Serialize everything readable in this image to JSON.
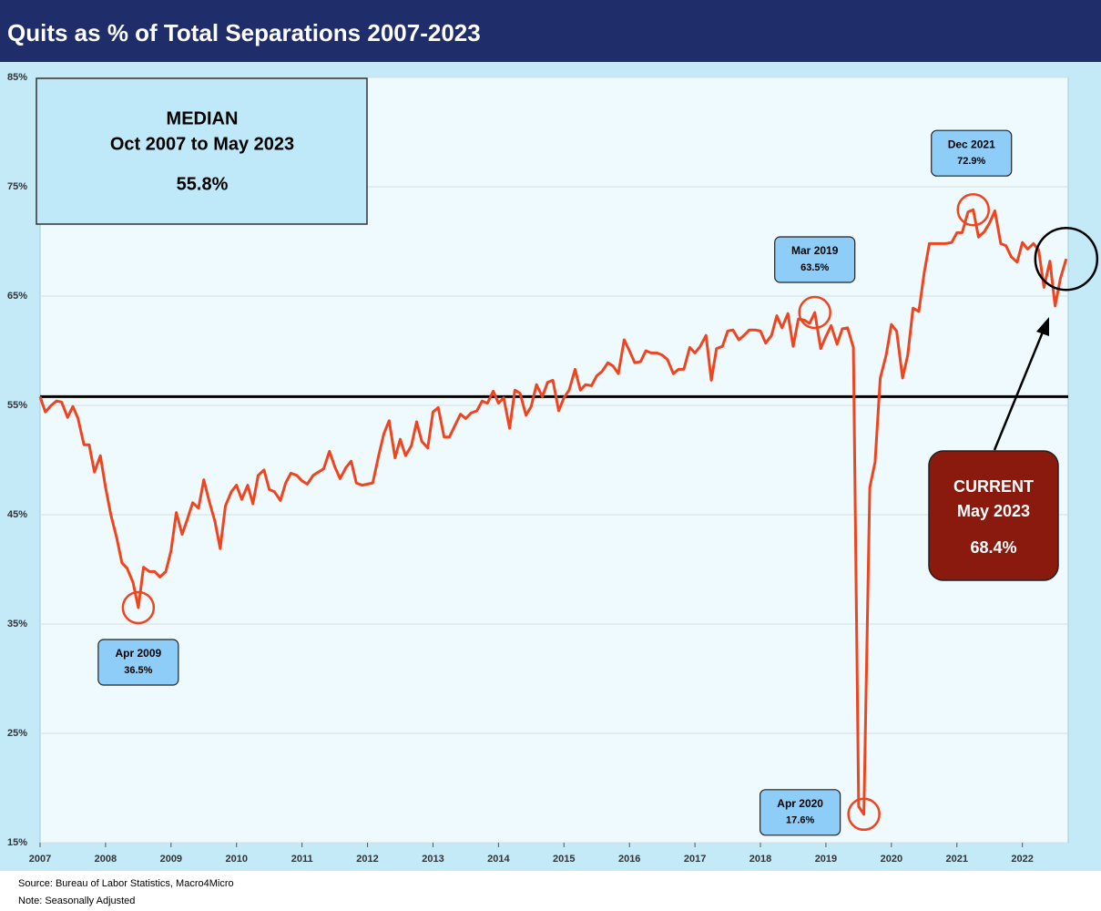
{
  "chart_data": {
    "type": "line",
    "title": "Quits as % of Total Separations 2007-2023",
    "source": "Source: Bureau of Labor Statistics, Macro4Micro",
    "note": "Note: Seasonally Adjusted",
    "color": "#f0441f",
    "grid": true,
    "xlim": [
      2007,
      2022.7
    ],
    "xticks": [
      2007,
      2008,
      2009,
      2010,
      2011,
      2012,
      2013,
      2014,
      2015,
      2016,
      2017,
      2018,
      2019,
      2020,
      2021,
      2022
    ],
    "ylim": [
      15,
      85
    ],
    "yticks": [
      {
        "value": 15,
        "label": "15%"
      },
      {
        "value": 25,
        "label": "25%"
      },
      {
        "value": 35,
        "label": "35%"
      },
      {
        "value": 45,
        "label": "45%"
      },
      {
        "value": 55,
        "label": "55%"
      },
      {
        "value": 65,
        "label": "65%"
      },
      {
        "value": 75,
        "label": "75%"
      },
      {
        "value": 85,
        "label": "85%"
      }
    ],
    "x": [
      2007,
      2007.08,
      2007.17,
      2007.25,
      2007.33,
      2007.42,
      2007.5,
      2007.58,
      2007.67,
      2007.75,
      2007.83,
      2007.92,
      2008,
      2008.08,
      2008.17,
      2008.25,
      2008.33,
      2008.42,
      2008.5,
      2008.58,
      2008.67,
      2008.75,
      2008.83,
      2008.92,
      2009,
      2009.08,
      2009.17,
      2009.25,
      2009.33,
      2009.42,
      2009.5,
      2009.58,
      2009.67,
      2009.75,
      2009.83,
      2009.92,
      2010,
      2010.08,
      2010.17,
      2010.25,
      2010.33,
      2010.42,
      2010.5,
      2010.58,
      2010.67,
      2010.75,
      2010.83,
      2010.92,
      2011,
      2011.08,
      2011.17,
      2011.25,
      2011.33,
      2011.42,
      2011.5,
      2011.58,
      2011.67,
      2011.75,
      2011.83,
      2011.92,
      2012,
      2012.08,
      2012.17,
      2012.25,
      2012.33,
      2012.42,
      2012.5,
      2012.58,
      2012.67,
      2012.75,
      2012.83,
      2012.92,
      2013,
      2013.08,
      2013.17,
      2013.25,
      2013.33,
      2013.42,
      2013.5,
      2013.58,
      2013.67,
      2013.75,
      2013.83,
      2013.92,
      2014,
      2014.08,
      2014.17,
      2014.25,
      2014.33,
      2014.42,
      2014.5,
      2014.58,
      2014.67,
      2014.75,
      2014.83,
      2014.92,
      2015,
      2015.08,
      2015.17,
      2015.25,
      2015.33,
      2015.42,
      2015.5,
      2015.58,
      2015.67,
      2015.75,
      2015.83,
      2015.92,
      2016,
      2016.08,
      2016.17,
      2016.25,
      2016.33,
      2016.42,
      2016.5,
      2016.58,
      2016.67,
      2016.75,
      2016.83,
      2016.92,
      2017,
      2017.08,
      2017.17,
      2017.25,
      2017.33,
      2017.42,
      2017.5,
      2017.58,
      2017.67,
      2017.75,
      2017.83,
      2017.92,
      2018,
      2018.08,
      2018.17,
      2018.25,
      2018.33,
      2018.42,
      2018.5,
      2018.58,
      2018.67,
      2018.75,
      2018.83,
      2018.92,
      2019,
      2019.08,
      2019.17,
      2019.25,
      2019.33,
      2019.42,
      2019.5,
      2019.58,
      2019.67,
      2019.75,
      2019.83,
      2019.92,
      2020,
      2020.08,
      2020.17,
      2020.25,
      2020.33,
      2020.42,
      2020.5,
      2020.58,
      2020.67,
      2020.75,
      2020.83,
      2020.92,
      2021,
      2021.08,
      2021.17,
      2021.25,
      2021.33,
      2021.42,
      2021.5,
      2021.58,
      2021.67,
      2021.75,
      2021.83,
      2021.92,
      2022,
      2022.08,
      2022.17,
      2022.25,
      2022.33,
      2022.42,
      2022.5,
      2022.58,
      2022.67
    ],
    "values": [
      55.8,
      54.4,
      55.0,
      55.4,
      55.3,
      53.9,
      54.9,
      53.8,
      51.4,
      51.4,
      48.9,
      50.4,
      47.5,
      45.0,
      42.9,
      40.6,
      40.1,
      38.8,
      36.5,
      40.2,
      39.8,
      39.8,
      39.3,
      39.8,
      41.7,
      45.2,
      43.2,
      44.6,
      46.1,
      45.6,
      48.2,
      46.3,
      44.4,
      41.9,
      45.8,
      47.1,
      47.7,
      46.4,
      47.7,
      46.0,
      48.6,
      49.1,
      47.3,
      47.1,
      46.3,
      47.9,
      48.8,
      48.6,
      48.1,
      47.8,
      48.6,
      48.9,
      49.2,
      50.8,
      49.4,
      48.3,
      49.3,
      49.9,
      47.9,
      47.7,
      47.8,
      47.9,
      50.4,
      52.4,
      53.6,
      50.2,
      51.9,
      50.4,
      51.3,
      53.5,
      51.7,
      51.1,
      54.4,
      54.8,
      52.1,
      52.1,
      53.1,
      54.2,
      53.8,
      54.3,
      54.5,
      55.4,
      55.2,
      56.3,
      55.2,
      55.7,
      52.9,
      56.4,
      56.1,
      54.1,
      54.9,
      56.9,
      55.8,
      57.1,
      57.3,
      54.5,
      55.7,
      56.4,
      58.3,
      56.4,
      56.9,
      56.8,
      57.7,
      58.1,
      58.9,
      58.6,
      57.9,
      61.0,
      60.0,
      58.9,
      59.0,
      60.0,
      59.8,
      59.8,
      59.6,
      59.2,
      57.9,
      58.3,
      58.3,
      60.3,
      59.8,
      60.4,
      61.4,
      57.3,
      60.2,
      60.4,
      61.8,
      61.9,
      61.0,
      61.4,
      61.9,
      61.9,
      61.8,
      60.7,
      61.4,
      63.2,
      62.1,
      63.4,
      60.4,
      62.9,
      62.8,
      62.5,
      63.5,
      60.2,
      61.3,
      62.3,
      60.6,
      62.0,
      62.1,
      60.3,
      18.3,
      17.6,
      47.5,
      49.8,
      57.5,
      59.6,
      62.4,
      61.8,
      57.5,
      59.6,
      63.9,
      63.6,
      67.1,
      69.8,
      69.8,
      69.8,
      69.8,
      69.9,
      70.8,
      70.8,
      72.7,
      72.9,
      70.4,
      70.9,
      71.7,
      72.8,
      69.8,
      69.6,
      68.6,
      68.1,
      69.9,
      69.3,
      69.8,
      69.2,
      65.8,
      68.2,
      64.1,
      66.6,
      68.4
    ],
    "median": {
      "title": "MEDIAN",
      "period": "Oct 2007 to May 2023",
      "value": 55.8,
      "value_label": "55.8%"
    },
    "callouts": [
      {
        "label": "Apr 2009",
        "x": 2008.5,
        "value": 36.5,
        "value_label": "36.5%"
      },
      {
        "label": "Mar 2019",
        "x": 2018.83,
        "value": 63.5,
        "value_label": "63.5%"
      },
      {
        "label": "Apr 2020",
        "x": 2019.58,
        "value": 17.6,
        "value_label": "17.6%"
      },
      {
        "label": "Dec 2021",
        "x": 2021.25,
        "value": 72.9,
        "value_label": "72.9%"
      }
    ],
    "current": {
      "title": "CURRENT",
      "label": "May 2023",
      "x": 2022.67,
      "value": 68.4,
      "value_label": "68.4%"
    }
  }
}
